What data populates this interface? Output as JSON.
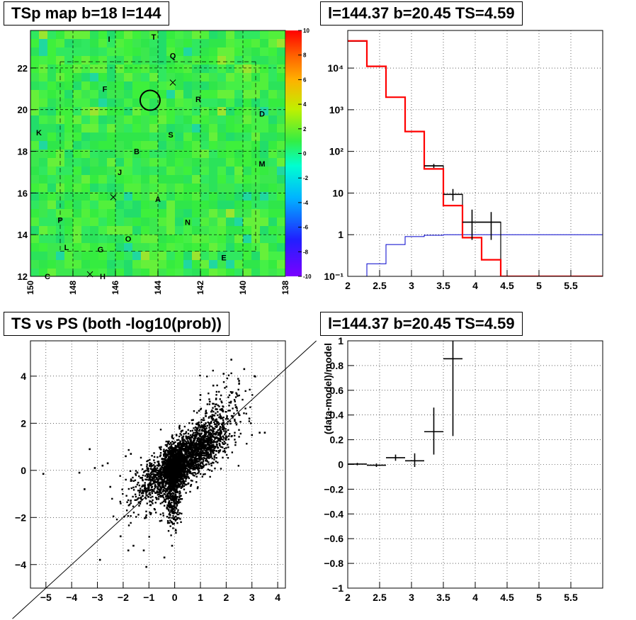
{
  "panels": {
    "map_title": "TSp map b=18 l=144",
    "spectrum_title": "l=144.37 b=20.45 TS=4.59",
    "scatter_title": "TS vs PS (both -log10(prob))",
    "residual_title": "l=144.37 b=20.45 TS=4.59"
  },
  "colors": {
    "map_green": "#33ee44",
    "data": "#000000",
    "model": "#ff0000",
    "background_model": "#0000cc"
  },
  "chart_data": [
    {
      "type": "heatmap",
      "title": "TSp map b=18 l=144",
      "xlim": [
        150,
        138
      ],
      "ylim": [
        12,
        23.8
      ],
      "x_ticks": [
        150,
        148,
        146,
        144,
        142,
        140,
        138
      ],
      "y_ticks": [
        12,
        14,
        16,
        18,
        20,
        22
      ],
      "colorbar": {
        "min": -10,
        "max": 10,
        "ticks": [
          10,
          8,
          6,
          4,
          2,
          0,
          -2,
          -4,
          -6,
          -8,
          -10
        ]
      },
      "circle": {
        "l": 144.37,
        "b": 20.45
      },
      "labels": [
        {
          "text": "I",
          "l": 146.3,
          "b": 23.4
        },
        {
          "text": "T",
          "l": 144.2,
          "b": 23.5
        },
        {
          "text": "Q",
          "l": 143.3,
          "b": 22.6
        },
        {
          "text": "F",
          "l": 146.5,
          "b": 21.0
        },
        {
          "text": "R",
          "l": 142.1,
          "b": 20.5
        },
        {
          "text": "D",
          "l": 139.1,
          "b": 19.8
        },
        {
          "text": "K",
          "l": 149.6,
          "b": 18.9
        },
        {
          "text": "S",
          "l": 143.4,
          "b": 18.8
        },
        {
          "text": "B",
          "l": 145.0,
          "b": 18.0
        },
        {
          "text": "M",
          "l": 139.1,
          "b": 17.4
        },
        {
          "text": "J",
          "l": 145.8,
          "b": 17.0
        },
        {
          "text": "A",
          "l": 144.0,
          "b": 15.7
        },
        {
          "text": "P",
          "l": 148.6,
          "b": 14.7
        },
        {
          "text": "N",
          "l": 142.6,
          "b": 14.6
        },
        {
          "text": "O",
          "l": 145.4,
          "b": 13.8
        },
        {
          "text": "L",
          "l": 148.3,
          "b": 13.4
        },
        {
          "text": "G",
          "l": 146.7,
          "b": 13.3
        },
        {
          "text": "E",
          "l": 140.9,
          "b": 12.9
        },
        {
          "text": "C",
          "l": 149.2,
          "b": 12.0
        },
        {
          "text": "H",
          "l": 146.6,
          "b": 12.0
        }
      ],
      "crosses": [
        {
          "l": 143.3,
          "b": 21.3
        },
        {
          "l": 146.1,
          "b": 15.8
        },
        {
          "l": 147.2,
          "b": 12.1
        }
      ]
    },
    {
      "type": "line",
      "title": "l=144.37 b=20.45 TS=4.59",
      "log_y": true,
      "xlim": [
        2,
        6
      ],
      "ylim": [
        0.1,
        80000
      ],
      "x_ticks": [
        2,
        2.5,
        3,
        3.5,
        4,
        4.5,
        5,
        5.5
      ],
      "y_ticks": [
        {
          "v": 0.1,
          "t": "10⁻¹"
        },
        {
          "v": 1,
          "t": "1"
        },
        {
          "v": 10,
          "t": "10"
        },
        {
          "v": 100,
          "t": "10²"
        },
        {
          "v": 1000,
          "t": "10³"
        },
        {
          "v": 10000,
          "t": "10⁴"
        }
      ],
      "series": [
        {
          "kind": "model",
          "edges": [
            2,
            2.3,
            2.6,
            2.9,
            3.2,
            3.5,
            3.8,
            4.1,
            4.4,
            4.7,
            5.0,
            5.3,
            5.6,
            6.0
          ],
          "values": [
            45000,
            11000,
            2000,
            300,
            38,
            5,
            0.85,
            0.25,
            0.1,
            0.1,
            0.1,
            0.1,
            0.1
          ]
        },
        {
          "kind": "data",
          "edges": [
            2,
            2.3,
            2.6,
            2.9,
            3.2,
            3.5,
            3.8,
            4.1,
            4.4,
            4.7,
            5.0,
            5.3,
            5.6,
            6.0
          ],
          "values": [
            44000,
            11000,
            2000,
            300,
            45,
            9.3,
            2,
            2,
            0.1,
            0.1,
            0.1,
            0.1,
            0.1
          ]
        },
        {
          "kind": "background",
          "edges": [
            2,
            2.3,
            2.6,
            2.9,
            3.2,
            3.5,
            3.8,
            4.1,
            4.4,
            4.7,
            5.0,
            5.3,
            5.6,
            6.0
          ],
          "values": [
            0.1,
            0.2,
            0.58,
            0.9,
            0.97,
            1,
            1,
            1,
            1,
            1,
            1,
            1,
            1
          ]
        }
      ],
      "points": [
        {
          "x": 3.35,
          "xerr": 0.15,
          "y": 45,
          "ylo": 40,
          "yhi": 50
        },
        {
          "x": 3.65,
          "xerr": 0.15,
          "y": 9.3,
          "ylo": 6.5,
          "yhi": 12.5
        },
        {
          "x": 3.95,
          "xerr": 0.15,
          "y": 2,
          "ylo": 0.75,
          "yhi": 4
        },
        {
          "x": 4.25,
          "xerr": 0.15,
          "y": 2,
          "ylo": 0.75,
          "yhi": 3.5
        }
      ]
    },
    {
      "type": "scatter",
      "title": "TS vs PS (both -log10(prob))",
      "xlim": [
        -5.6,
        4.3
      ],
      "ylim": [
        -5,
        5.5
      ],
      "x_ticks": [
        -5,
        -4,
        -3,
        -2,
        -1,
        0,
        1,
        2,
        3,
        4
      ],
      "y_ticks": [
        -4,
        -2,
        0,
        2,
        4
      ],
      "diagonal": true,
      "clusters": [
        {
          "n": 1100,
          "cx": 0.0,
          "cy": 0.1,
          "sx": 0.22,
          "sy": 0.55,
          "rho": 0.25
        },
        {
          "n": 900,
          "cx": 0.55,
          "cy": 0.6,
          "sx": 0.55,
          "sy": 0.6,
          "rho": 0.55
        },
        {
          "n": 550,
          "cx": 1.2,
          "cy": 1.2,
          "sx": 0.5,
          "sy": 0.65,
          "rho": 0.45
        },
        {
          "n": 420,
          "cx": -0.6,
          "cy": -0.3,
          "sx": 0.4,
          "sy": 0.5,
          "rho": 0.4
        },
        {
          "n": 200,
          "cx": -0.05,
          "cy": -1.4,
          "sx": 0.14,
          "sy": 0.5,
          "rho": 0.0
        },
        {
          "n": 150,
          "cx": -1.1,
          "cy": -0.9,
          "sx": 0.55,
          "sy": 0.7,
          "rho": 0.3
        },
        {
          "n": 140,
          "cx": 1.8,
          "cy": 2.3,
          "sx": 0.55,
          "sy": 0.8,
          "rho": 0.35
        }
      ],
      "outliers": [
        [
          -5.1,
          -0.15
        ],
        [
          -3.7,
          -0.1
        ],
        [
          -3.5,
          -0.8
        ],
        [
          -3.1,
          0.1
        ],
        [
          -2.8,
          0.2
        ],
        [
          -2.6,
          0.3
        ],
        [
          -2.5,
          -0.7
        ],
        [
          -3.3,
          0.9
        ],
        [
          -2.9,
          -3.8
        ],
        [
          -2.1,
          -2.8
        ],
        [
          -1.8,
          -3.4
        ],
        [
          -1.6,
          -3.2
        ],
        [
          -1.2,
          -3.4
        ],
        [
          -1.1,
          -4.1
        ],
        [
          -0.4,
          -3.7
        ],
        [
          -0.1,
          -3.2
        ],
        [
          -1.9,
          0.6
        ],
        [
          -1.7,
          0.7
        ],
        [
          2.7,
          4.3
        ],
        [
          2.5,
          3.8
        ],
        [
          3.1,
          4.0
        ],
        [
          3.3,
          1.6
        ],
        [
          3.0,
          1.5
        ],
        [
          2.2,
          4.7
        ],
        [
          1.9,
          4.1
        ],
        [
          2.9,
          2.2
        ],
        [
          3.5,
          1.6
        ],
        [
          1.5,
          3.6
        ],
        [
          1.0,
          3.2
        ]
      ]
    },
    {
      "type": "scatter",
      "title": "l=144.37 b=20.45 TS=4.59",
      "ylabel": "(data-model)/model",
      "xlim": [
        2,
        6
      ],
      "ylim": [
        -1,
        1
      ],
      "x_ticks": [
        2,
        2.5,
        3,
        3.5,
        4,
        4.5,
        5,
        5.5
      ],
      "y_ticks": [
        1,
        0.8,
        0.6,
        0.4,
        0.2,
        0,
        -0.2,
        -0.4,
        -0.6,
        -0.8,
        -1
      ],
      "points": [
        {
          "x": 2.15,
          "xerr": 0.15,
          "y": 0.003,
          "ylo": -0.007,
          "yhi": 0.013
        },
        {
          "x": 2.45,
          "xerr": 0.15,
          "y": -0.006,
          "ylo": -0.02,
          "yhi": 0.008
        },
        {
          "x": 2.75,
          "xerr": 0.15,
          "y": 0.055,
          "ylo": 0.03,
          "yhi": 0.08
        },
        {
          "x": 3.05,
          "xerr": 0.15,
          "y": 0.03,
          "ylo": -0.02,
          "yhi": 0.09
        },
        {
          "x": 3.35,
          "xerr": 0.15,
          "y": 0.265,
          "ylo": 0.08,
          "yhi": 0.46
        },
        {
          "x": 3.65,
          "xerr": 0.15,
          "y": 0.855,
          "ylo": 0.23,
          "yhi": 1.0
        }
      ]
    }
  ]
}
